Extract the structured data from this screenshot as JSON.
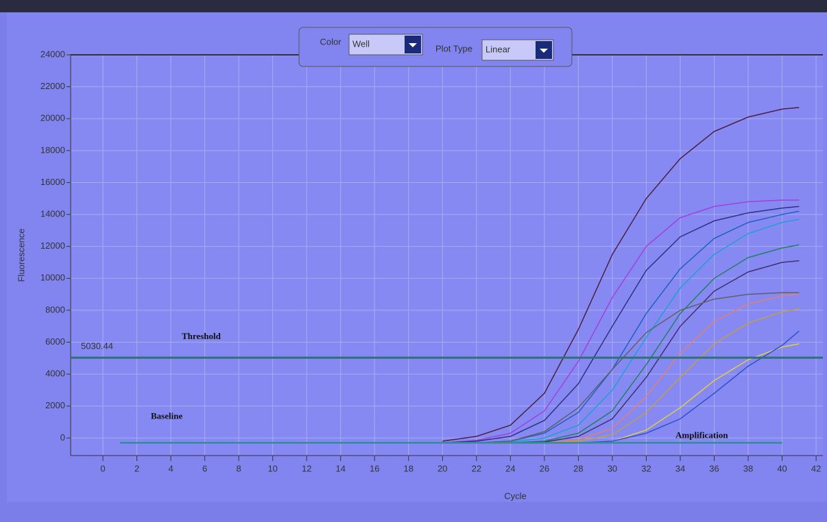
{
  "toolbar": {
    "color_label": "Color",
    "color_value": "Well",
    "plot_type_label": "Plot Type",
    "plot_type_value": "Linear"
  },
  "chart_data": {
    "type": "line",
    "x_label": "Cycle",
    "y_label": "Fluorescence",
    "x": [
      20,
      22,
      24,
      26,
      28,
      30,
      32,
      34,
      36,
      38,
      40,
      41
    ],
    "series": [
      {
        "color": "#4a2040",
        "values": [
          -200,
          100,
          800,
          2800,
          6800,
          11500,
          15000,
          17500,
          19200,
          20100,
          20600,
          20700
        ]
      },
      {
        "color": "#a040e0",
        "values": [
          -300,
          -150,
          300,
          1700,
          4800,
          8800,
          12000,
          13800,
          14500,
          14800,
          14900,
          14900
        ]
      },
      {
        "color": "#303080",
        "values": [
          -300,
          -200,
          100,
          1100,
          3400,
          7000,
          10500,
          12600,
          13600,
          14100,
          14400,
          14500
        ]
      },
      {
        "color": "#2060c0",
        "values": [
          -300,
          -300,
          -200,
          300,
          1600,
          4300,
          7800,
          10600,
          12500,
          13500,
          14000,
          14200
        ]
      },
      {
        "color": "#20a0d0",
        "values": [
          -300,
          -300,
          -250,
          0,
          800,
          3000,
          6300,
          9400,
          11500,
          12800,
          13500,
          13700
        ]
      },
      {
        "color": "#208060",
        "values": [
          -300,
          -300,
          -300,
          -200,
          300,
          1700,
          4600,
          7800,
          10000,
          11300,
          11900,
          12100
        ]
      },
      {
        "color": "#403070",
        "values": [
          -300,
          -300,
          -300,
          -250,
          100,
          1200,
          3800,
          7000,
          9200,
          10400,
          11000,
          11100
        ]
      },
      {
        "color": "#e08070",
        "values": [
          -300,
          -300,
          -300,
          -300,
          -100,
          600,
          2600,
          5300,
          7300,
          8400,
          8900,
          9000
        ]
      },
      {
        "color": "#c0a040",
        "values": [
          -300,
          -300,
          -300,
          -300,
          -200,
          200,
          1600,
          3800,
          5900,
          7200,
          7900,
          8100
        ]
      },
      {
        "color": "#e0d040",
        "values": [
          -300,
          -300,
          -300,
          -300,
          -300,
          -200,
          500,
          1900,
          3600,
          4900,
          5700,
          5900
        ]
      },
      {
        "color": "#3050d0",
        "values": [
          -300,
          -300,
          -300,
          -300,
          -300,
          -200,
          300,
          1200,
          2800,
          4500,
          5800,
          6700
        ]
      },
      {
        "color": "#606060",
        "values": [
          -300,
          -300,
          -200,
          400,
          1900,
          4300,
          6600,
          8000,
          8700,
          9000,
          9100,
          9100
        ]
      }
    ],
    "xlim": [
      -1.9,
      42.4
    ],
    "ylim": [
      -1100,
      24000
    ],
    "xticks": [
      0,
      2,
      4,
      6,
      8,
      10,
      12,
      14,
      16,
      18,
      20,
      22,
      24,
      26,
      28,
      30,
      32,
      34,
      36,
      38,
      40,
      42
    ],
    "yticks": [
      0,
      2000,
      4000,
      6000,
      8000,
      10000,
      12000,
      14000,
      16000,
      18000,
      20000,
      22000,
      24000
    ],
    "grid": true,
    "threshold": {
      "label": "Threshold",
      "value": 5030.44,
      "color": "#2f6f78"
    },
    "baseline": {
      "label": "Baseline",
      "value": -300,
      "x": [
        1,
        40
      ],
      "color": "#2f8f98"
    },
    "annotation": "Amplification"
  }
}
